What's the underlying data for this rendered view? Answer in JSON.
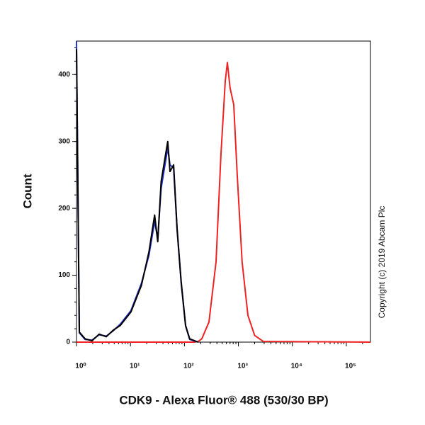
{
  "chart_data": {
    "type": "line",
    "x_label": "CDK9 - Alexa Fluor® 488 (530/30 BP)",
    "y_label": "Count",
    "annotation": "Copyright (c) 2019 Abcam Plc",
    "xscale": "log",
    "xlim": [
      1,
      280000
    ],
    "ylim": [
      0,
      450
    ],
    "xticks": [
      {
        "value": 1,
        "label": "10⁰"
      },
      {
        "value": 10,
        "label": "10¹"
      },
      {
        "value": 100,
        "label": "10²"
      },
      {
        "value": 1000,
        "label": "10³"
      },
      {
        "value": 10000,
        "label": "10⁴"
      },
      {
        "value": 100000,
        "label": "10⁵"
      }
    ],
    "yticks": [
      0,
      100,
      200,
      300,
      400
    ],
    "series": [
      {
        "color": "#ee2222",
        "x": [
          1,
          150,
          180,
          210,
          285,
          385,
          475,
          570,
          625,
          700,
          820,
          950,
          1170,
          1500,
          2000,
          2900,
          280000
        ],
        "values": [
          0,
          0,
          1,
          5,
          30,
          120,
          280,
          390,
          418,
          380,
          355,
          250,
          120,
          40,
          10,
          1,
          0
        ]
      },
      {
        "color": "#2233cc",
        "x": [
          1,
          1.13,
          1.44,
          1.94,
          2.63,
          3.56,
          4.82,
          6.5,
          10.2,
          16,
          22,
          28,
          32,
          37,
          49,
          54,
          63,
          73,
          87,
          105,
          125,
          180
        ],
        "values": [
          450,
          14,
          4,
          3,
          11,
          9,
          17,
          27,
          47,
          88,
          130,
          180,
          155,
          230,
          290,
          265,
          260,
          168,
          88,
          24,
          4,
          0
        ]
      },
      {
        "color": "#000000",
        "x": [
          1,
          1.13,
          1.44,
          1.94,
          2.63,
          3.56,
          4.82,
          6.5,
          10.2,
          16,
          22,
          28,
          32,
          37,
          49,
          54,
          63,
          73,
          87,
          105,
          125,
          180
        ],
        "values": [
          438,
          15,
          5,
          2,
          12,
          8,
          18,
          25,
          45,
          85,
          135,
          190,
          150,
          240,
          300,
          255,
          265,
          170,
          90,
          25,
          5,
          0
        ]
      }
    ]
  }
}
